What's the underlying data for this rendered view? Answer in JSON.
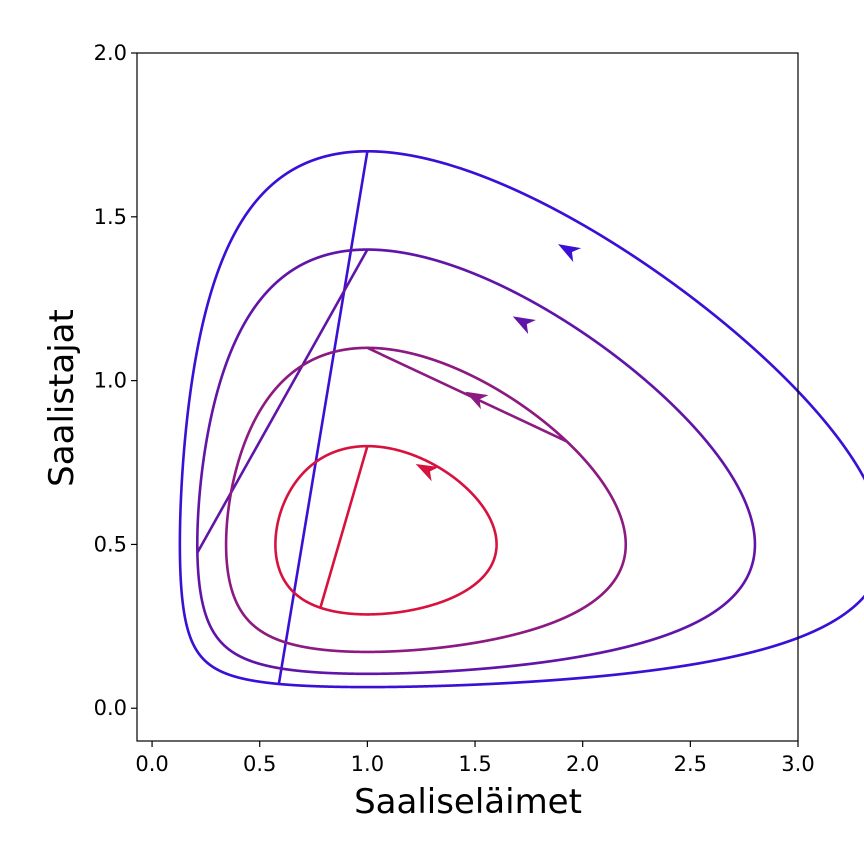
{
  "chart_data": {
    "type": "line",
    "title": "",
    "xlabel": "Saaliseläimet",
    "ylabel": "Saalistajat",
    "xlim": [
      -0.07,
      3.0
    ],
    "ylim": [
      -0.1,
      2.0
    ],
    "xticks": [
      "0.0",
      "0.5",
      "1.0",
      "1.5",
      "2.0",
      "2.5",
      "3.0"
    ],
    "yticks": [
      "0.0",
      "0.5",
      "1.0",
      "1.5",
      "2.0"
    ],
    "grid": false,
    "legend": "none",
    "series": [
      {
        "color": "#3a0fd6",
        "y_at_x1": 1.7,
        "x_at_center": 0.5,
        "arrow_at": [
          1.93,
          1.4
        ]
      },
      {
        "color": "#6114a8",
        "y_at_x1": 1.4,
        "x_at_center": 0.5,
        "arrow_at": [
          1.72,
          1.18
        ]
      },
      {
        "color": "#8c1a80",
        "y_at_x1": 1.1,
        "x_at_center": 0.5,
        "arrow_at": [
          1.5,
          0.95
        ]
      },
      {
        "color": "#d8123e",
        "y_at_x1": 0.8,
        "x_at_center": 0.5,
        "arrow_at": [
          1.27,
          0.73
        ]
      }
    ]
  }
}
